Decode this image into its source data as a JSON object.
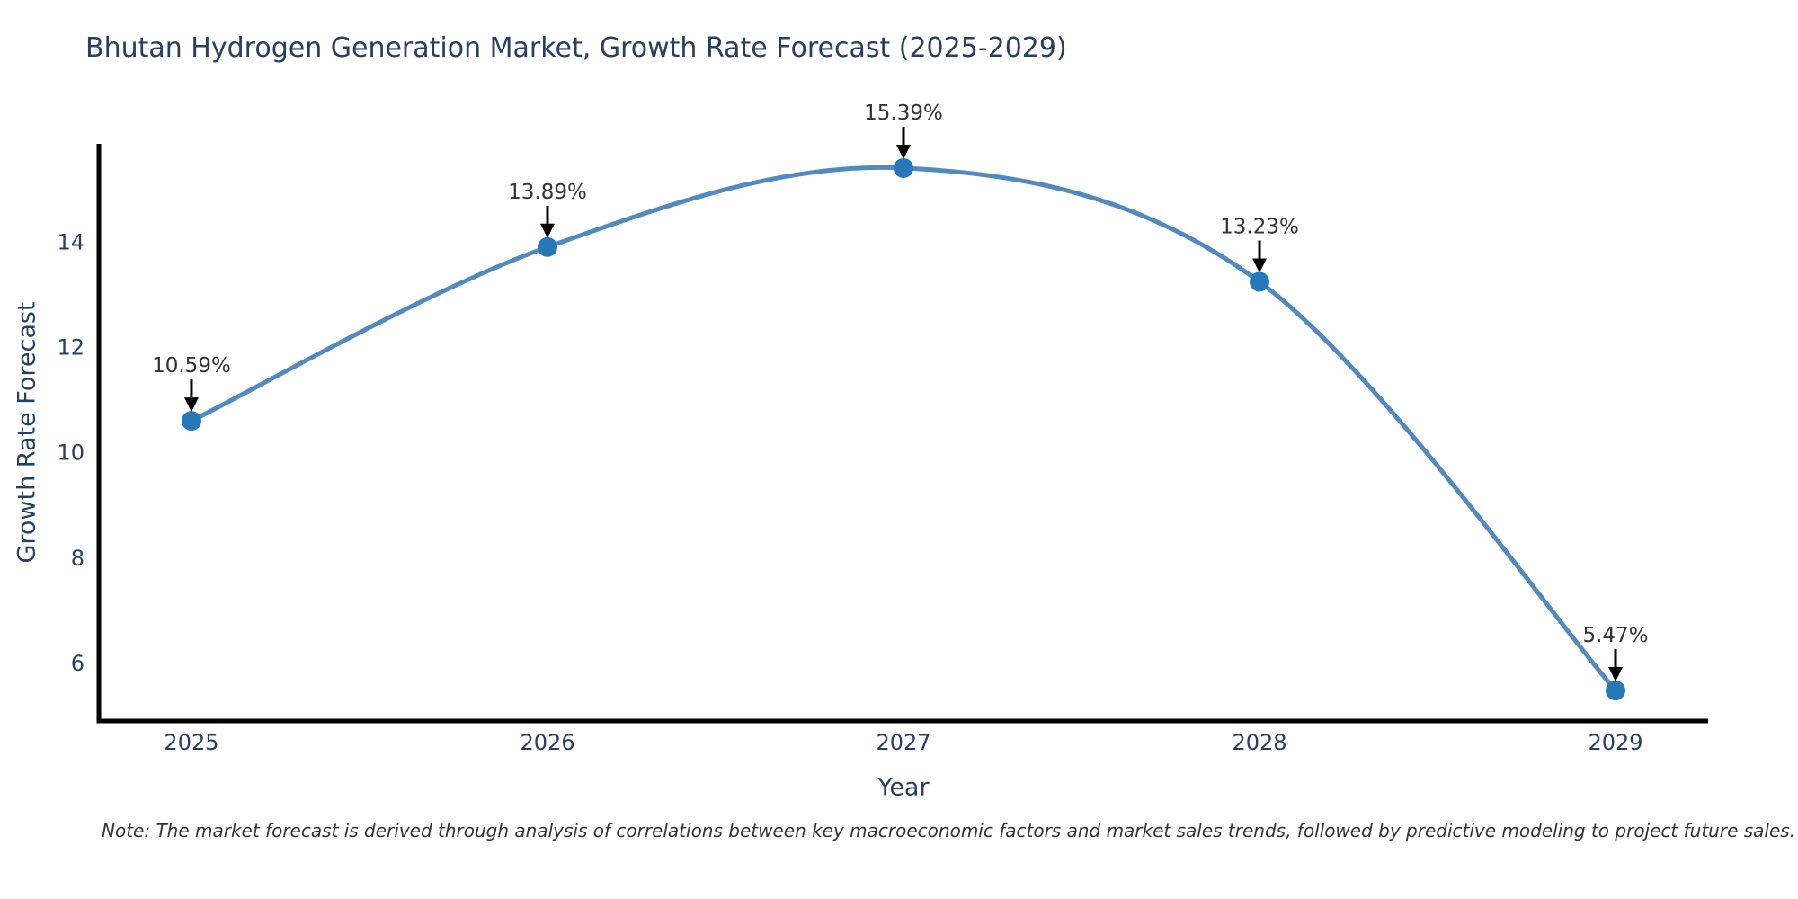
{
  "chart_data": {
    "type": "line",
    "title": "Bhutan Hydrogen Generation Market, Growth Rate Forecast (2025-2029)",
    "xlabel": "Year",
    "ylabel": "Growth Rate Forecast",
    "x": [
      2025,
      2026,
      2027,
      2028,
      2029
    ],
    "series": [
      {
        "name": "Growth Rate Forecast",
        "values": [
          10.59,
          13.89,
          15.39,
          13.23,
          5.47
        ],
        "point_labels": [
          "10.59%",
          "13.89%",
          "15.39%",
          "13.23%",
          "5.47%"
        ]
      }
    ],
    "xticks": [
      2025,
      2026,
      2027,
      2028,
      2029
    ],
    "yticks": [
      6,
      8,
      10,
      12,
      14
    ],
    "xlim": [
      2024.74,
      2029.26
    ],
    "ylim": [
      4.89,
      15.85
    ],
    "grid": false,
    "legend": "none",
    "line_smoothing": "spline",
    "annotation_style": "value label above point with black down arrow",
    "colors": {
      "line": "#5489ba",
      "marker": "#2878b8",
      "axis": "#000000",
      "text": "#2a3f5f",
      "annotation_text": "#333333",
      "arrow": "#000000",
      "background": "#ffffff"
    },
    "note": "Note: The market forecast is derived through analysis of correlations between key macroeconomic factors and market sales trends, followed by predictive modeling to project future sales."
  }
}
